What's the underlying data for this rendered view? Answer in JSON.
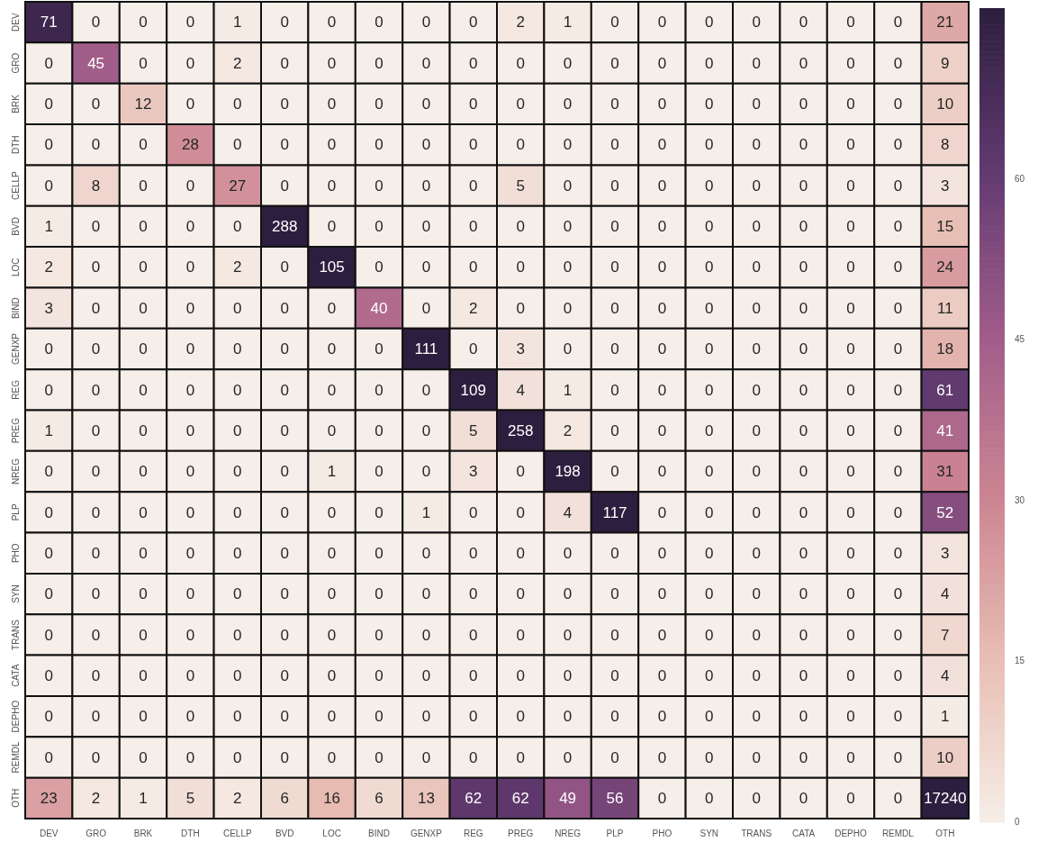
{
  "chart_data": {
    "type": "heatmap",
    "categories": [
      "DEV",
      "GRO",
      "BRK",
      "DTH",
      "CELLP",
      "BVD",
      "LOC",
      "BIND",
      "GENXP",
      "REG",
      "PREG",
      "NREG",
      "PLP",
      "PHO",
      "SYN",
      "TRANS",
      "CATA",
      "DEPHO",
      "REMDL",
      "OTH"
    ],
    "y_categories": [
      "DEV",
      "GRO",
      "BRK",
      "DTH",
      "CELLP",
      "BVD",
      "LOC",
      "BIND",
      "GENXP",
      "REG",
      "PREG",
      "NREG",
      "PLP",
      "PHO",
      "SYN",
      "TRANS",
      "CATA",
      "DEPHO",
      "REMDL",
      "OTH"
    ],
    "cells": [
      [
        71,
        0,
        0,
        0,
        1,
        0,
        0,
        0,
        0,
        0,
        2,
        1,
        0,
        0,
        0,
        0,
        0,
        0,
        0,
        21
      ],
      [
        0,
        45,
        0,
        0,
        2,
        0,
        0,
        0,
        0,
        0,
        0,
        0,
        0,
        0,
        0,
        0,
        0,
        0,
        0,
        9
      ],
      [
        0,
        0,
        12,
        0,
        0,
        0,
        0,
        0,
        0,
        0,
        0,
        0,
        0,
        0,
        0,
        0,
        0,
        0,
        0,
        10
      ],
      [
        0,
        0,
        0,
        28,
        0,
        0,
        0,
        0,
        0,
        0,
        0,
        0,
        0,
        0,
        0,
        0,
        0,
        0,
        0,
        8
      ],
      [
        0,
        8,
        0,
        0,
        27,
        0,
        0,
        0,
        0,
        0,
        5,
        0,
        0,
        0,
        0,
        0,
        0,
        0,
        0,
        3
      ],
      [
        1,
        0,
        0,
        0,
        0,
        288,
        0,
        0,
        0,
        0,
        0,
        0,
        0,
        0,
        0,
        0,
        0,
        0,
        0,
        15
      ],
      [
        2,
        0,
        0,
        0,
        2,
        0,
        105,
        0,
        0,
        0,
        0,
        0,
        0,
        0,
        0,
        0,
        0,
        0,
        0,
        24
      ],
      [
        3,
        0,
        0,
        0,
        0,
        0,
        0,
        40,
        0,
        2,
        0,
        0,
        0,
        0,
        0,
        0,
        0,
        0,
        0,
        11
      ],
      [
        0,
        0,
        0,
        0,
        0,
        0,
        0,
        0,
        111,
        0,
        3,
        0,
        0,
        0,
        0,
        0,
        0,
        0,
        0,
        18
      ],
      [
        0,
        0,
        0,
        0,
        0,
        0,
        0,
        0,
        0,
        109,
        4,
        1,
        0,
        0,
        0,
        0,
        0,
        0,
        0,
        61
      ],
      [
        1,
        0,
        0,
        0,
        0,
        0,
        0,
        0,
        0,
        5,
        258,
        2,
        0,
        0,
        0,
        0,
        0,
        0,
        0,
        41
      ],
      [
        0,
        0,
        0,
        0,
        0,
        0,
        1,
        0,
        0,
        3,
        0,
        198,
        0,
        0,
        0,
        0,
        0,
        0,
        0,
        31
      ],
      [
        0,
        0,
        0,
        0,
        0,
        0,
        0,
        0,
        1,
        0,
        0,
        4,
        117,
        0,
        0,
        0,
        0,
        0,
        0,
        52
      ],
      [
        0,
        0,
        0,
        0,
        0,
        0,
        0,
        0,
        0,
        0,
        0,
        0,
        0,
        0,
        0,
        0,
        0,
        0,
        0,
        3
      ],
      [
        0,
        0,
        0,
        0,
        0,
        0,
        0,
        0,
        0,
        0,
        0,
        0,
        0,
        0,
        0,
        0,
        0,
        0,
        0,
        4
      ],
      [
        0,
        0,
        0,
        0,
        0,
        0,
        0,
        0,
        0,
        0,
        0,
        0,
        0,
        0,
        0,
        0,
        0,
        0,
        0,
        7
      ],
      [
        0,
        0,
        0,
        0,
        0,
        0,
        0,
        0,
        0,
        0,
        0,
        0,
        0,
        0,
        0,
        0,
        0,
        0,
        0,
        4
      ],
      [
        0,
        0,
        0,
        0,
        0,
        0,
        0,
        0,
        0,
        0,
        0,
        0,
        0,
        0,
        0,
        0,
        0,
        0,
        0,
        1
      ],
      [
        0,
        0,
        0,
        0,
        0,
        0,
        0,
        0,
        0,
        0,
        0,
        0,
        0,
        0,
        0,
        0,
        0,
        0,
        0,
        10
      ],
      [
        23,
        2,
        1,
        5,
        2,
        6,
        16,
        6,
        13,
        62,
        62,
        49,
        56,
        0,
        0,
        0,
        0,
        0,
        0,
        17240
      ]
    ],
    "clim": [
      0,
      76
    ],
    "cticks": [
      0,
      15,
      30,
      45,
      60
    ],
    "data_labels": true
  }
}
